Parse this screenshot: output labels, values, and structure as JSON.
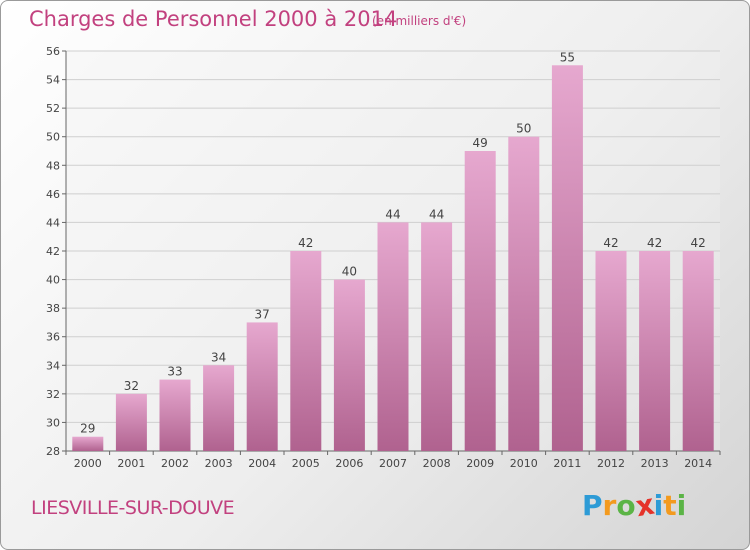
{
  "title": "Charges de Personnel 2000 à 2014",
  "subtitle": "(en milliers d'€)",
  "commune": "LIESVILLE-SUR-DOUVE",
  "logo": {
    "letters": [
      "P",
      "r",
      "o",
      "x",
      "i",
      "t",
      "i"
    ],
    "colors": [
      "#2d9bd6",
      "#f39a1e",
      "#5bb446",
      "#e5332a",
      "#2d9bd6",
      "#f39a1e",
      "#5bb446"
    ]
  },
  "colors": {
    "title": "#c2417f",
    "bar_top": "#e6a8cf",
    "bar_bottom": "#b0628f",
    "grid": "#cfcfcf"
  },
  "chart_data": {
    "type": "bar",
    "title": "Charges de Personnel 2000 à 2014",
    "subtitle": "(en milliers d'€)",
    "categories": [
      "2000",
      "2001",
      "2002",
      "2003",
      "2004",
      "2005",
      "2006",
      "2007",
      "2008",
      "2009",
      "2010",
      "2011",
      "2012",
      "2013",
      "2014"
    ],
    "values": [
      29,
      32,
      33,
      34,
      37,
      42,
      40,
      44,
      44,
      49,
      50,
      55,
      42,
      42,
      42
    ],
    "ylim": [
      28,
      56
    ],
    "yticks": [
      28,
      30,
      32,
      34,
      36,
      38,
      40,
      42,
      44,
      46,
      48,
      50,
      52,
      54,
      56
    ],
    "grid": true,
    "legend": "none"
  }
}
